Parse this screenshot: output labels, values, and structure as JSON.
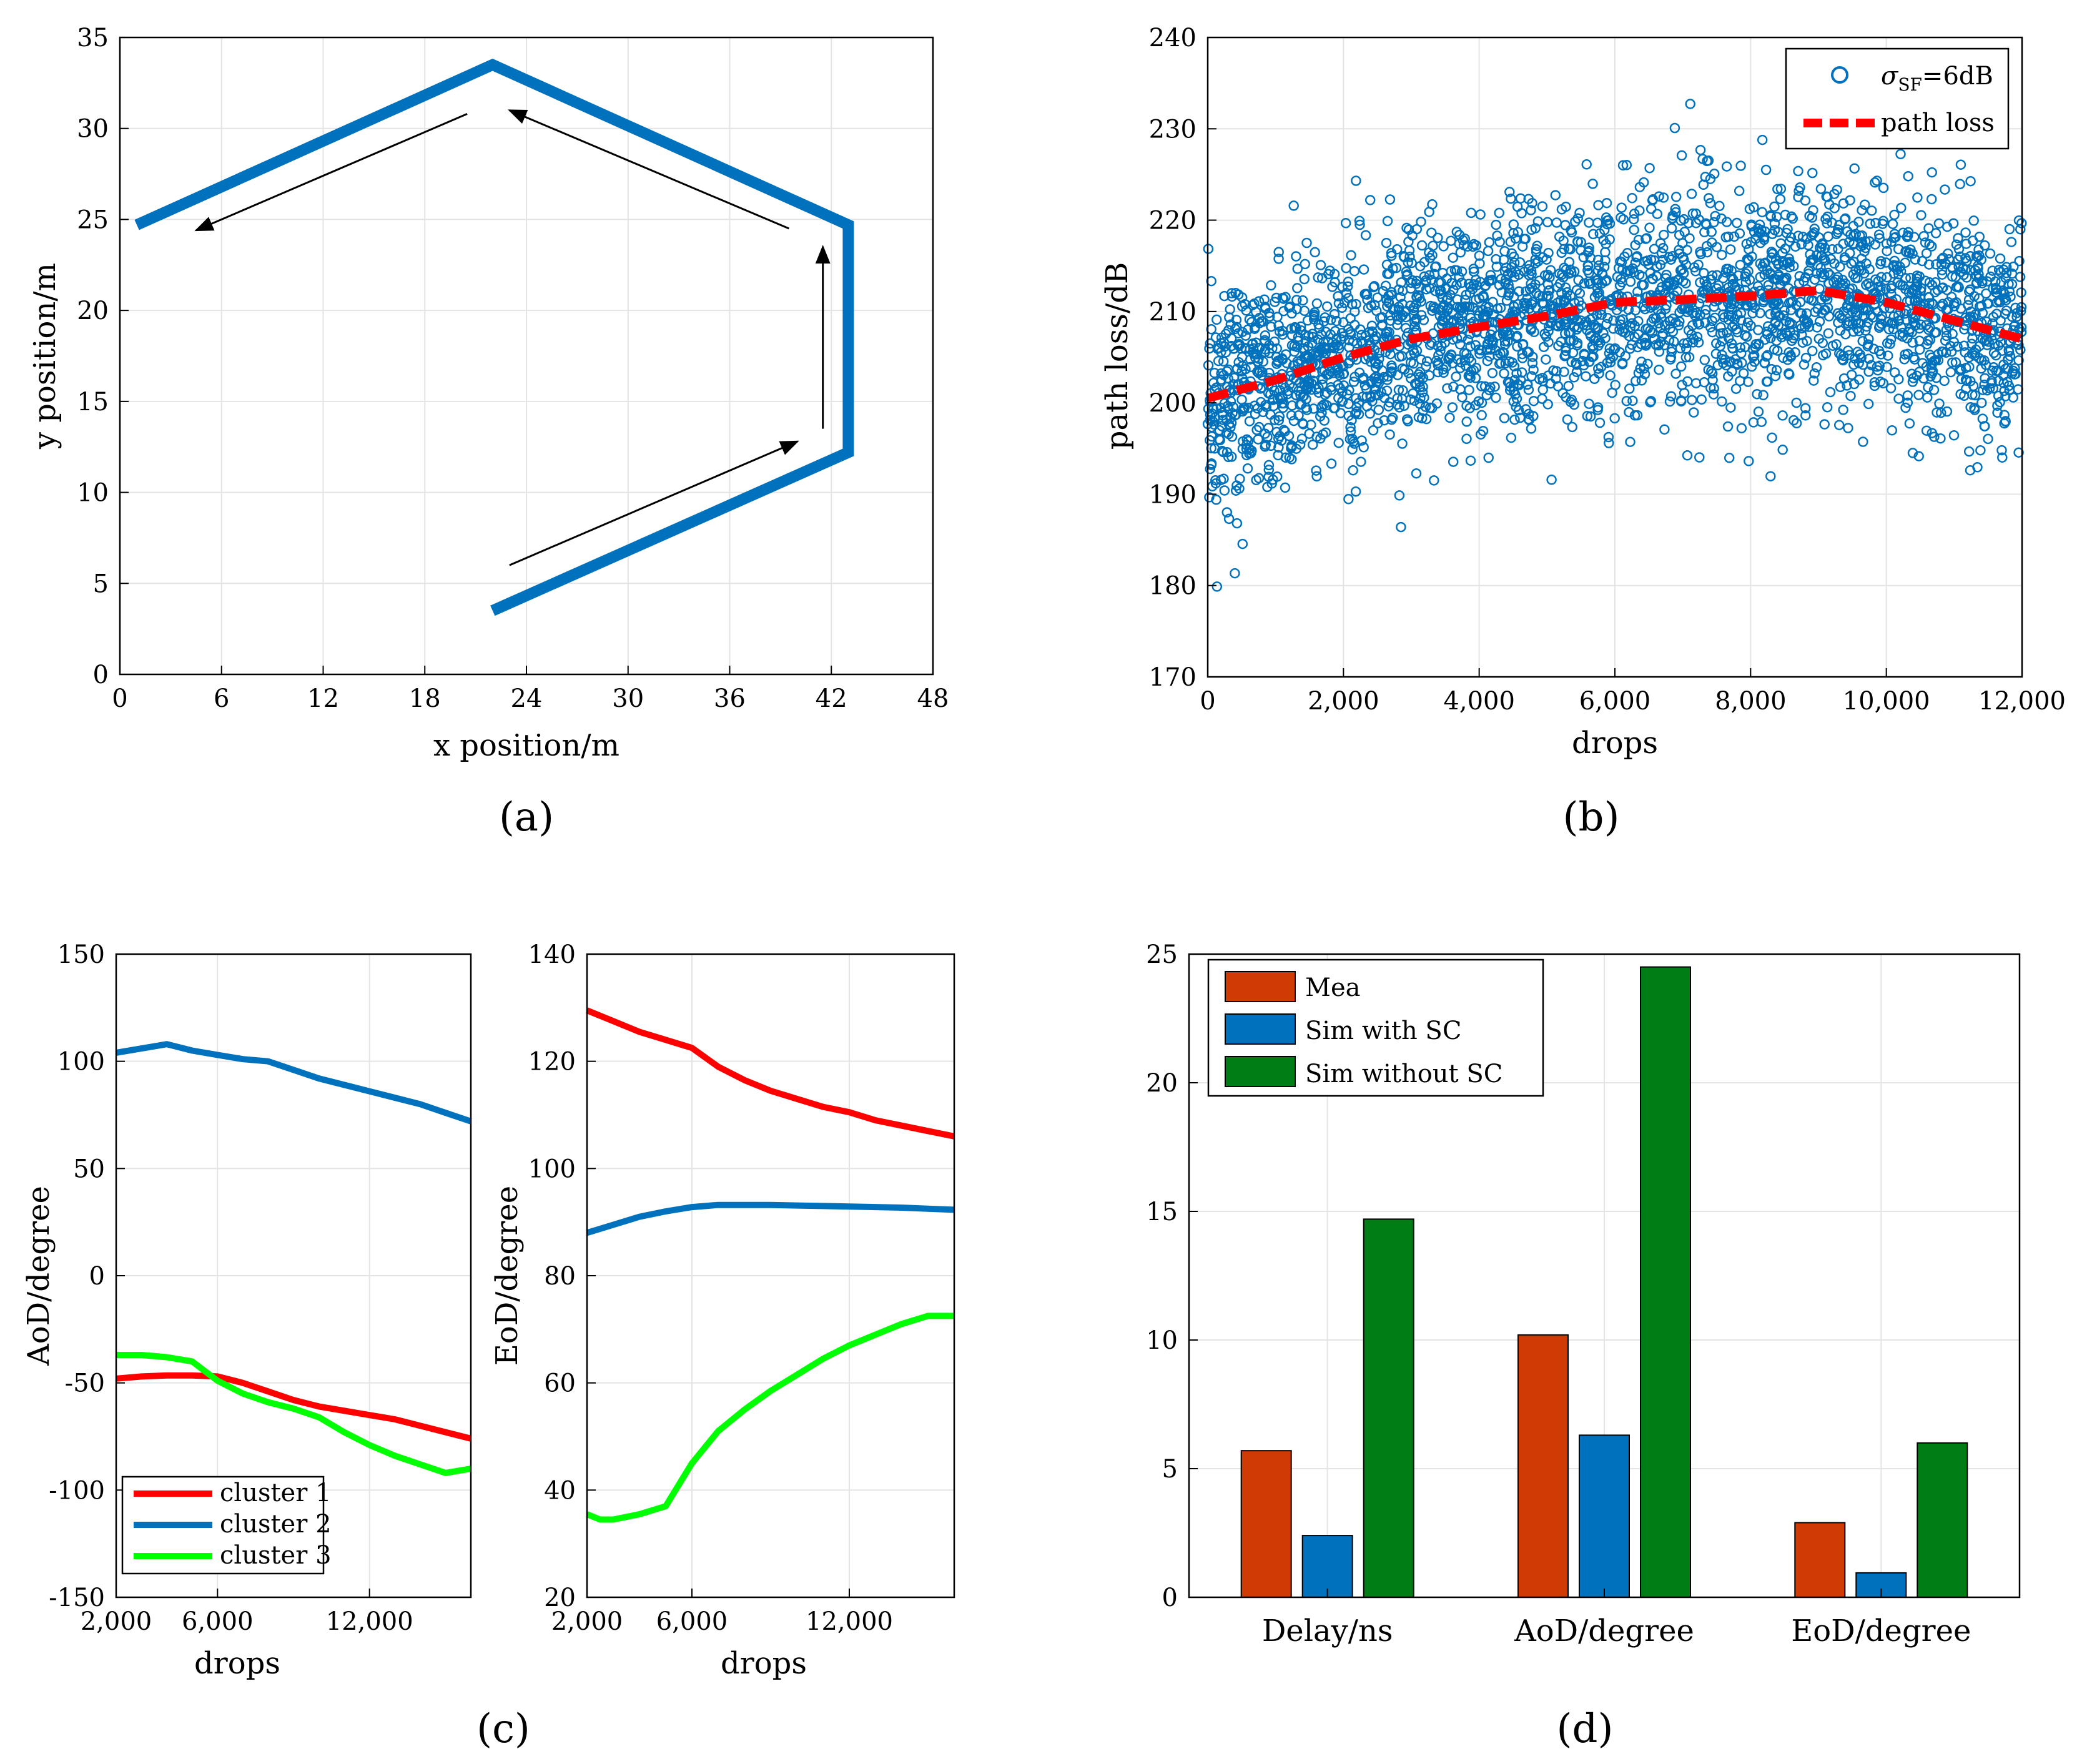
{
  "panel_labels": [
    "(a)",
    "(b)",
    "(c)",
    "(d)"
  ],
  "colors": {
    "route": "#0072BD",
    "scatter": "#0072BD",
    "pathloss": "#FF0000",
    "cluster1": "#FF0000",
    "cluster2": "#0072BD",
    "cluster3": "#00FF00",
    "mea": "#D03A04",
    "sim_with_sc": "#0071BC",
    "sim_without_sc": "#007E15"
  },
  "chart_data": [
    {
      "id": "a",
      "type": "line",
      "title": "",
      "xlabel": "x position/m",
      "ylabel": "y position/m",
      "xlim": [
        0,
        48
      ],
      "ylim": [
        0,
        35
      ],
      "xticks": [
        0,
        6,
        12,
        18,
        24,
        30,
        36,
        42,
        48
      ],
      "yticks": [
        0,
        5,
        10,
        15,
        20,
        25,
        30,
        35
      ],
      "route": {
        "x": [
          22,
          43,
          43,
          22,
          1
        ],
        "y": [
          3.5,
          12.2,
          24.7,
          33.5,
          24.7
        ]
      },
      "arrows": [
        {
          "from": [
            23,
            6
          ],
          "to": [
            40,
            12.8
          ]
        },
        {
          "from": [
            41.5,
            13.5
          ],
          "to": [
            41.5,
            23.5
          ]
        },
        {
          "from": [
            39.5,
            24.5
          ],
          "to": [
            23,
            31
          ]
        },
        {
          "from": [
            20.5,
            30.8
          ],
          "to": [
            4.5,
            24.4
          ]
        }
      ]
    },
    {
      "id": "b",
      "type": "scatter",
      "title": "",
      "xlabel": "drops",
      "ylabel": "path loss/dB",
      "xlim": [
        0,
        12000
      ],
      "ylim": [
        170,
        240
      ],
      "xticks": [
        0,
        2000,
        4000,
        6000,
        8000,
        10000,
        12000
      ],
      "xtick_labels": [
        "0",
        "2,000",
        "4,000",
        "6,000",
        "8,000",
        "10,000",
        "12,000"
      ],
      "yticks": [
        170,
        180,
        190,
        200,
        210,
        220,
        230,
        240
      ],
      "legend": {
        "position": "top-right",
        "entries": [
          "σSF=6dB",
          "path loss"
        ]
      },
      "scatter_series": {
        "name": "σSF=6dB",
        "sigma_db": 6,
        "n_points": 3000
      },
      "path_loss": {
        "x": [
          0,
          1000,
          2000,
          3000,
          4000,
          5000,
          6000,
          7000,
          8000,
          9000,
          10000,
          11000,
          12000
        ],
        "y": [
          200.5,
          202.5,
          205,
          207,
          208.3,
          209.5,
          211,
          211.3,
          211.7,
          212.3,
          211,
          209,
          207
        ]
      }
    },
    {
      "id": "c1",
      "type": "line",
      "title": "",
      "xlabel": "drops",
      "ylabel": "AoD/degree",
      "xlim": [
        2000,
        16000
      ],
      "ylim": [
        -150,
        150
      ],
      "xticks": [
        2000,
        6000,
        12000
      ],
      "xtick_labels": [
        "2,000",
        "6,000",
        "12,000"
      ],
      "yticks": [
        -150,
        -100,
        -50,
        0,
        50,
        100,
        150
      ],
      "legend": {
        "position": "bottom-left",
        "entries": [
          "cluster 1",
          "cluster 2",
          "cluster 3"
        ]
      },
      "series": [
        {
          "name": "cluster 1",
          "x": [
            2000,
            3000,
            4000,
            5000,
            6000,
            7000,
            8000,
            9000,
            10000,
            11000,
            12000,
            13000,
            14000,
            15000,
            16000
          ],
          "y": [
            -48,
            -47,
            -46.5,
            -46.5,
            -47,
            -50,
            -54,
            -58,
            -61,
            -63,
            -65,
            -67,
            -70,
            -73,
            -76
          ]
        },
        {
          "name": "cluster 2",
          "x": [
            2000,
            3000,
            4000,
            5000,
            6000,
            7000,
            8000,
            9000,
            10000,
            11000,
            12000,
            13000,
            14000,
            15000,
            16000
          ],
          "y": [
            104,
            106,
            108,
            105,
            103,
            101,
            100,
            96,
            92,
            89,
            86,
            83,
            80,
            76,
            72
          ]
        },
        {
          "name": "cluster 3",
          "x": [
            2000,
            3000,
            4000,
            5000,
            6000,
            7000,
            8000,
            9000,
            10000,
            11000,
            12000,
            13000,
            14000,
            15000,
            16000
          ],
          "y": [
            -37,
            -37,
            -38,
            -40,
            -49,
            -55,
            -59,
            -62,
            -66,
            -73,
            -79,
            -84,
            -88,
            -92,
            -90
          ]
        }
      ]
    },
    {
      "id": "c2",
      "type": "line",
      "title": "",
      "xlabel": "drops",
      "ylabel": "EoD/degree",
      "xlim": [
        2000,
        16000
      ],
      "ylim": [
        20,
        140
      ],
      "xticks": [
        2000,
        6000,
        12000
      ],
      "xtick_labels": [
        "2,000",
        "6,000",
        "12,000"
      ],
      "yticks": [
        20,
        40,
        60,
        80,
        100,
        120,
        140
      ],
      "series": [
        {
          "name": "cluster 1",
          "x": [
            2000,
            3000,
            4000,
            5000,
            6000,
            7000,
            8000,
            9000,
            10000,
            11000,
            12000,
            13000,
            14000,
            15000,
            16000
          ],
          "y": [
            129.5,
            127.5,
            125.5,
            124,
            122.5,
            119,
            116.5,
            114.5,
            113,
            111.5,
            110.5,
            109,
            108,
            107,
            106
          ]
        },
        {
          "name": "cluster 2",
          "x": [
            2000,
            3000,
            4000,
            5000,
            6000,
            7000,
            8000,
            9000,
            10000,
            11000,
            12000,
            13000,
            14000,
            15000,
            16000
          ],
          "y": [
            88,
            89.5,
            91,
            92,
            92.8,
            93.2,
            93.2,
            93.2,
            93.1,
            93,
            92.9,
            92.8,
            92.7,
            92.5,
            92.3
          ]
        },
        {
          "name": "cluster 3",
          "x": [
            2000,
            2500,
            3000,
            4000,
            5000,
            6000,
            7000,
            8000,
            9000,
            10000,
            11000,
            12000,
            13000,
            14000,
            15000,
            16000
          ],
          "y": [
            35.5,
            34.5,
            34.5,
            35.5,
            37,
            45,
            51,
            55,
            58.5,
            61.5,
            64.5,
            67,
            69,
            71,
            72.5,
            72.5
          ]
        }
      ]
    },
    {
      "id": "d",
      "type": "bar",
      "title": "",
      "xlabel": "",
      "ylabel": "",
      "ylim": [
        0,
        25
      ],
      "yticks": [
        0,
        5,
        10,
        15,
        20,
        25
      ],
      "categories": [
        "Delay/ns",
        "AoD/degree",
        "EoD/degree"
      ],
      "legend": {
        "position": "top-left",
        "entries": [
          "Mea",
          "Sim with SC",
          "Sim without SC"
        ]
      },
      "series": [
        {
          "name": "Mea",
          "values": [
            5.7,
            10.2,
            2.9
          ]
        },
        {
          "name": "Sim with SC",
          "values": [
            2.4,
            6.3,
            0.95
          ]
        },
        {
          "name": "Sim without SC",
          "values": [
            14.7,
            24.5,
            6.0
          ]
        }
      ]
    }
  ]
}
